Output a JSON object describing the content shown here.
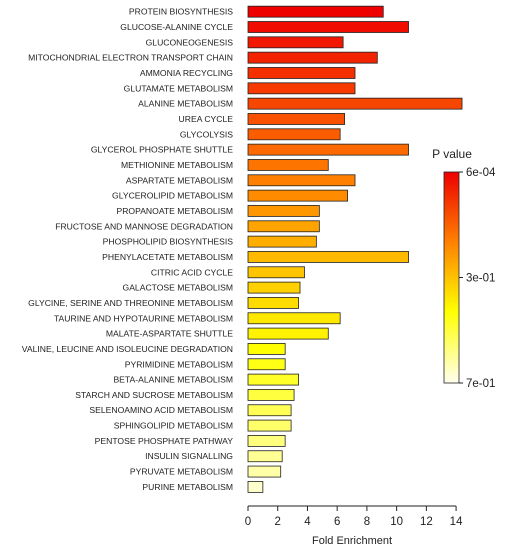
{
  "chart_data": {
    "type": "bar",
    "orientation": "horizontal",
    "categories": [
      "PROTEIN BIOSYNTHESIS",
      "GLUCOSE-ALANINE CYCLE",
      "GLUCONEOGENESIS",
      "MITOCHONDRIAL ELECTRON TRANSPORT CHAIN",
      "AMMONIA RECYCLING",
      "GLUTAMATE METABOLISM",
      "ALANINE METABOLISM",
      "UREA CYCLE",
      "GLYCOLYSIS",
      "GLYCEROL PHOSPHATE SHUTTLE",
      "METHIONINE METABOLISM",
      "ASPARTATE METABOLISM",
      "GLYCEROLIPID METABOLISM",
      "PROPANOATE METABOLISM",
      "FRUCTOSE AND MANNOSE DEGRADATION",
      "PHOSPHOLIPID BIOSYNTHESIS",
      "PHENYLACETATE METABOLISM",
      "CITRIC ACID CYCLE",
      "GALACTOSE METABOLISM",
      "GLYCINE, SERINE AND THREONINE METABOLISM",
      "TAURINE AND HYPOTAURINE METABOLISM",
      "MALATE-ASPARTATE SHUTTLE",
      "VALINE, LEUCINE AND ISOLEUCINE DEGRADATION",
      "PYRIMIDINE METABOLISM",
      "BETA-ALANINE METABOLISM",
      "STARCH AND SUCROSE METABOLISM",
      "SELENOAMINO ACID METABOLISM",
      "SPHINGOLIPID METABOLISM",
      "PENTOSE PHOSPHATE PATHWAY",
      "INSULIN SIGNALLING",
      "PYRUVATE METABOLISM",
      "PURINE METABOLISM"
    ],
    "values": [
      9.1,
      10.8,
      6.4,
      8.7,
      7.2,
      7.2,
      14.4,
      6.5,
      6.2,
      10.8,
      5.4,
      7.2,
      6.7,
      4.8,
      4.8,
      4.6,
      10.8,
      3.8,
      3.5,
      3.4,
      6.2,
      5.4,
      2.5,
      2.5,
      3.4,
      3.1,
      2.9,
      2.9,
      2.5,
      2.3,
      2.2,
      1.0
    ],
    "color_position": [
      0.0,
      0.03,
      0.06,
      0.09,
      0.12,
      0.15,
      0.18,
      0.21,
      0.24,
      0.27,
      0.3,
      0.33,
      0.36,
      0.39,
      0.42,
      0.45,
      0.48,
      0.51,
      0.54,
      0.57,
      0.6,
      0.63,
      0.66,
      0.69,
      0.72,
      0.75,
      0.78,
      0.81,
      0.84,
      0.87,
      0.9,
      0.95
    ],
    "xlabel": "Fold Enrichment",
    "xlim": [
      0,
      14.6
    ],
    "xticks": [
      "0",
      "2",
      "4",
      "6",
      "8",
      "10",
      "12",
      "14"
    ],
    "grid": false,
    "legend": {
      "title": "P value",
      "position": "right",
      "ticks": [
        "6e-04",
        "3e-01",
        "7e-01"
      ],
      "colors": [
        "#ee0000",
        "#ff8000",
        "#ffff00",
        "#ffffee"
      ]
    }
  }
}
